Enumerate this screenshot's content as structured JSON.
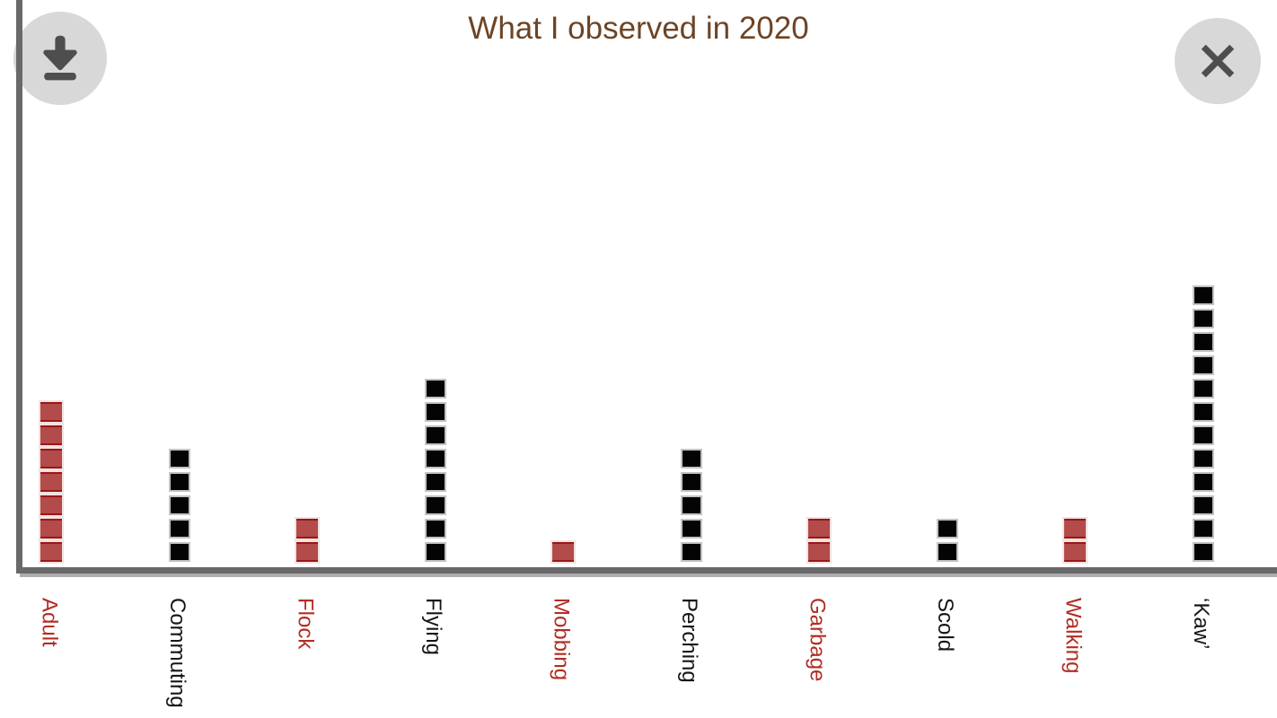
{
  "chart_data": {
    "type": "bar",
    "variant": "stacked-unit-square-pictogram",
    "title": "What I observed in 2020",
    "categories": [
      "Adult",
      "Commuting",
      "Flock",
      "Flying",
      "Mobbing",
      "Perching",
      "Garbage",
      "Scold",
      "Walking",
      "‘Kaw’"
    ],
    "values": [
      7,
      5,
      2,
      8,
      1,
      5,
      2,
      2,
      2,
      12
    ],
    "series_colors": [
      "red",
      "black",
      "red",
      "black",
      "red",
      "black",
      "red",
      "black",
      "red",
      "black"
    ],
    "square_unit": 1,
    "grid": false,
    "legend": false,
    "xlabel": "",
    "ylabel": "",
    "palette": {
      "red_fill": "#b24b49",
      "red_border": "#9e1515",
      "red_outline": "#f2e2e2",
      "black_fill": "#040404",
      "black_border": "#c3c3c3",
      "label_red": "#b22d23",
      "label_black": "#161616",
      "axis": "#696969",
      "axis_shadow": "#adadad",
      "title": "#6d4425",
      "button_bg": "#d8d8d8",
      "icon": "#4e4e4e"
    }
  },
  "buttons": {
    "download_icon": "download-icon",
    "close_icon": "close-icon"
  }
}
